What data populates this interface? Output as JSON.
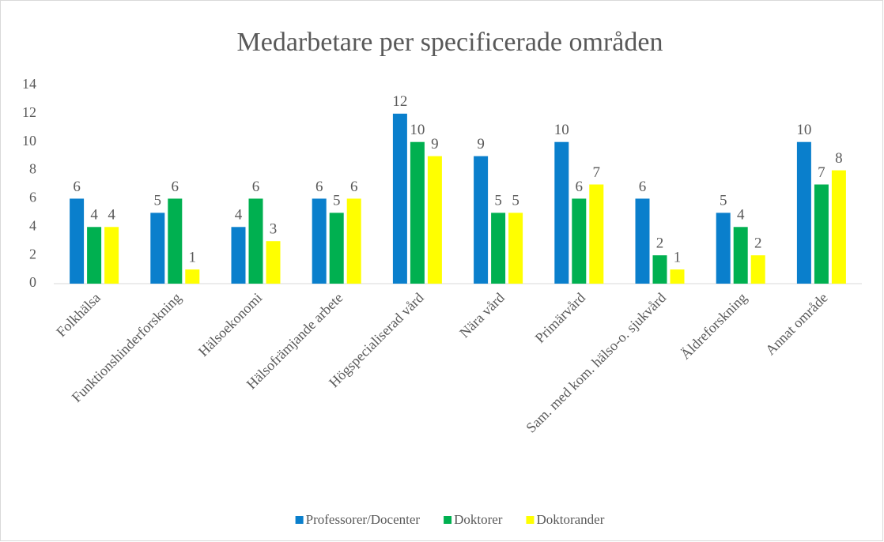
{
  "chart_data": {
    "type": "bar",
    "title": "Medarbetare per specificerade områden",
    "categories": [
      "Folkhälsa",
      "Funktionshinderforskning",
      "Hälsoekonomi",
      "Hälsofrämjande arbete",
      "Högspecialiserad vård",
      "Nära vård",
      "Primärvård",
      "Sam. med kom. hälso-o. sjukvård",
      "Äldreforskning",
      "Annat område"
    ],
    "series": [
      {
        "name": "Professorer/Docenter",
        "color": "#0a7fcc",
        "values": [
          6,
          5,
          4,
          6,
          12,
          9,
          10,
          6,
          5,
          10
        ]
      },
      {
        "name": "Doktorer",
        "color": "#00b050",
        "values": [
          4,
          6,
          6,
          5,
          10,
          5,
          6,
          2,
          4,
          7
        ]
      },
      {
        "name": "Doktorander",
        "color": "#ffff00",
        "values": [
          4,
          1,
          3,
          6,
          9,
          5,
          7,
          1,
          2,
          8
        ]
      }
    ],
    "ylim": [
      0,
      14
    ],
    "yticks": [
      0,
      2,
      4,
      6,
      8,
      10,
      12,
      14
    ],
    "grid": false,
    "legend": "bottom"
  }
}
